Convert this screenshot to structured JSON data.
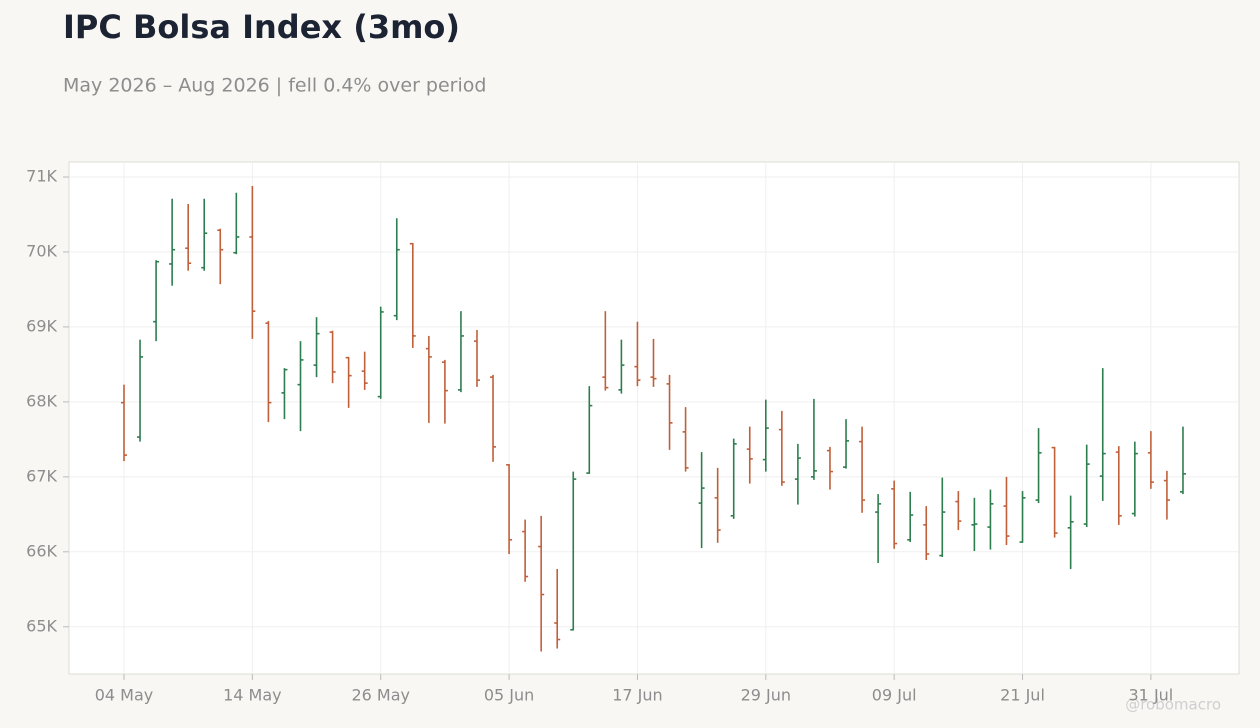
{
  "chart_data": {
    "type": "ohlc",
    "title": "IPC Bolsa Index (3mo)",
    "subtitle": "May 2026 – Aug 2026 | fell 0.4% over period",
    "watermark": "@robomacro",
    "categories": [
      "04 May",
      null,
      null,
      null,
      null,
      null,
      null,
      null,
      "14 May",
      null,
      null,
      null,
      null,
      null,
      null,
      null,
      "26 May",
      null,
      null,
      null,
      null,
      null,
      null,
      null,
      "05 Jun",
      null,
      null,
      null,
      null,
      null,
      null,
      null,
      "17 Jun",
      null,
      null,
      null,
      null,
      null,
      null,
      null,
      "29 Jun",
      null,
      null,
      null,
      null,
      null,
      null,
      null,
      "09 Jul",
      null,
      null,
      null,
      null,
      null,
      null,
      null,
      "21 Jul",
      null,
      null,
      null,
      null,
      null,
      null,
      null,
      "31 Jul",
      null,
      null
    ],
    "open": [
      67990,
      67530,
      69070,
      69840,
      70050,
      69790,
      70290,
      69990,
      70200,
      69050,
      68120,
      68230,
      68490,
      68930,
      68590,
      68410,
      68070,
      69150,
      70110,
      68710,
      68530,
      68160,
      68810,
      68330,
      67160,
      66270,
      66070,
      65050,
      64960,
      67050,
      68330,
      68160,
      68470,
      68330,
      68240,
      67600,
      66650,
      66720,
      66480,
      67370,
      67230,
      67630,
      66970,
      67000,
      67350,
      67130,
      67470,
      66530,
      66840,
      66160,
      66360,
      65950,
      66670,
      66360,
      66330,
      66610,
      66130,
      66690,
      67390,
      66320,
      66370,
      67010,
      67330,
      66510,
      67320,
      66950,
      66800
    ],
    "high": [
      68230,
      68830,
      69890,
      70710,
      70640,
      70710,
      70310,
      70790,
      70880,
      69080,
      68450,
      68810,
      69130,
      68950,
      68600,
      68670,
      69270,
      70450,
      70120,
      68880,
      68560,
      69210,
      68960,
      68360,
      67170,
      66430,
      66480,
      65770,
      67070,
      68210,
      69210,
      68830,
      69070,
      68840,
      68360,
      67930,
      67330,
      67120,
      67510,
      67670,
      68030,
      67880,
      67440,
      68040,
      67400,
      67770,
      67670,
      66770,
      66950,
      66800,
      66610,
      66990,
      66810,
      66720,
      66830,
      67000,
      66810,
      67650,
      67400,
      66750,
      67430,
      68450,
      67410,
      67470,
      67610,
      67080,
      67670
    ],
    "low": [
      67210,
      67470,
      68810,
      69550,
      69750,
      69750,
      69570,
      69970,
      68840,
      67730,
      67770,
      67610,
      68330,
      68250,
      67920,
      68160,
      68040,
      69090,
      68720,
      67720,
      67710,
      68130,
      68200,
      67200,
      65970,
      65600,
      64670,
      64710,
      64950,
      67040,
      68150,
      68110,
      68210,
      68200,
      67360,
      67070,
      66050,
      66120,
      66440,
      66910,
      67070,
      66880,
      66630,
      66960,
      66830,
      67110,
      66520,
      65850,
      66040,
      66130,
      65890,
      65930,
      66290,
      66010,
      66030,
      66090,
      66120,
      66650,
      66190,
      65770,
      66330,
      66680,
      66360,
      66470,
      66840,
      66430,
      66770
    ],
    "close": [
      67290,
      68600,
      69870,
      70030,
      69850,
      70250,
      70030,
      70200,
      69210,
      67990,
      68430,
      68560,
      68910,
      68400,
      68350,
      68250,
      69200,
      70030,
      68880,
      68600,
      68150,
      68880,
      68290,
      67400,
      66160,
      65670,
      65430,
      64830,
      66970,
      67950,
      68190,
      68490,
      68290,
      68310,
      67720,
      67120,
      66850,
      66290,
      67440,
      67240,
      67650,
      66930,
      67250,
      67080,
      67070,
      67480,
      66690,
      66640,
      66110,
      66490,
      65970,
      66530,
      66410,
      66370,
      66640,
      66210,
      66720,
      67320,
      66250,
      66400,
      67170,
      67310,
      66480,
      67310,
      66930,
      66690,
      67040
    ],
    "up_color": "#2e7d4f",
    "down_color": "#c0603a",
    "ylim": [
      64370,
      71200
    ],
    "yticks": [
      {
        "value": 65000,
        "label": "65K"
      },
      {
        "value": 66000,
        "label": "66K"
      },
      {
        "value": 67000,
        "label": "67K"
      },
      {
        "value": 68000,
        "label": "68K"
      },
      {
        "value": 69000,
        "label": "69K"
      },
      {
        "value": 70000,
        "label": "70K"
      },
      {
        "value": 71000,
        "label": "71K"
      }
    ],
    "grid": true
  }
}
